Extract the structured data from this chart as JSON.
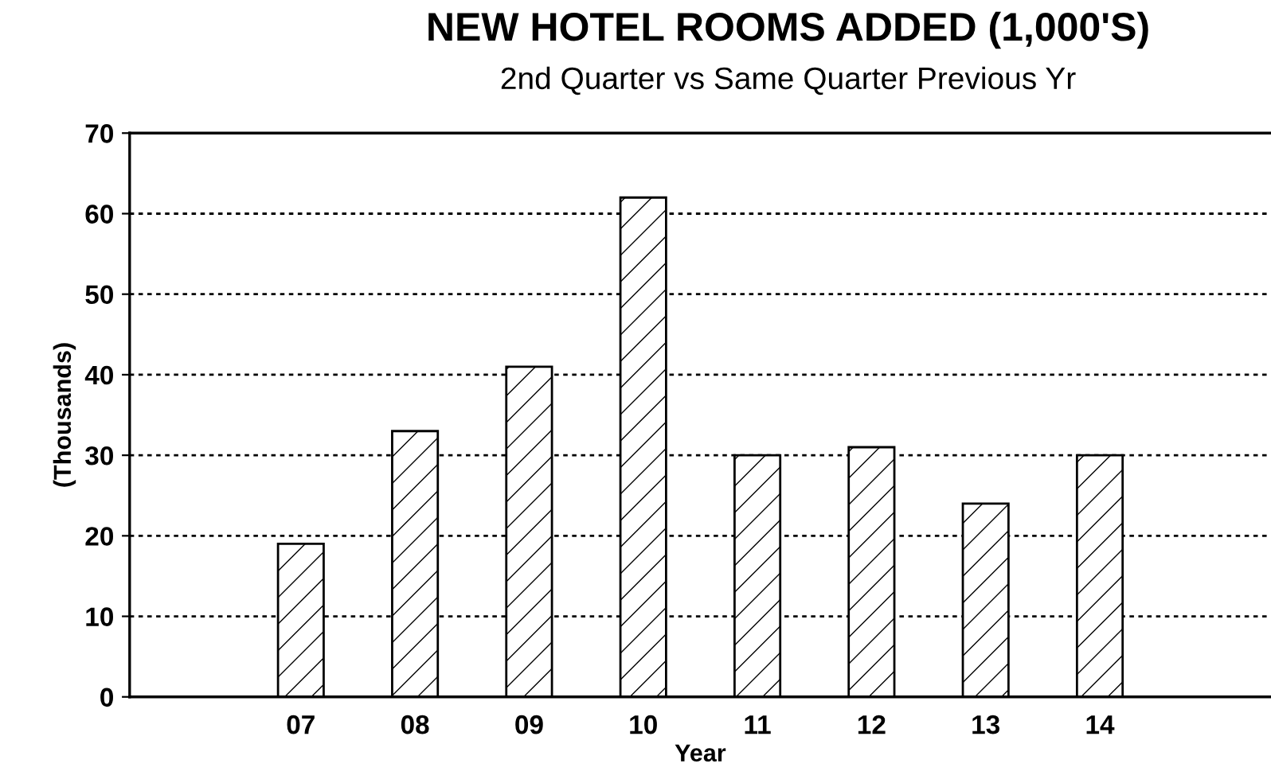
{
  "chart_data": {
    "type": "bar",
    "title": "NEW HOTEL ROOMS ADDED (1,000'S)",
    "subtitle": "2nd Quarter vs Same Quarter Previous Yr",
    "xlabel": "Year",
    "ylabel": "(Thousands)",
    "categories": [
      null,
      "07",
      "08",
      "09",
      "10",
      "11",
      "12",
      "13",
      "14",
      null
    ],
    "values": [
      null,
      19,
      33,
      41,
      62,
      30,
      31,
      24,
      30,
      null
    ],
    "ylim": [
      0,
      70
    ],
    "yticks": [
      0,
      10,
      20,
      30,
      40,
      50,
      60,
      70
    ],
    "grid": "y"
  }
}
